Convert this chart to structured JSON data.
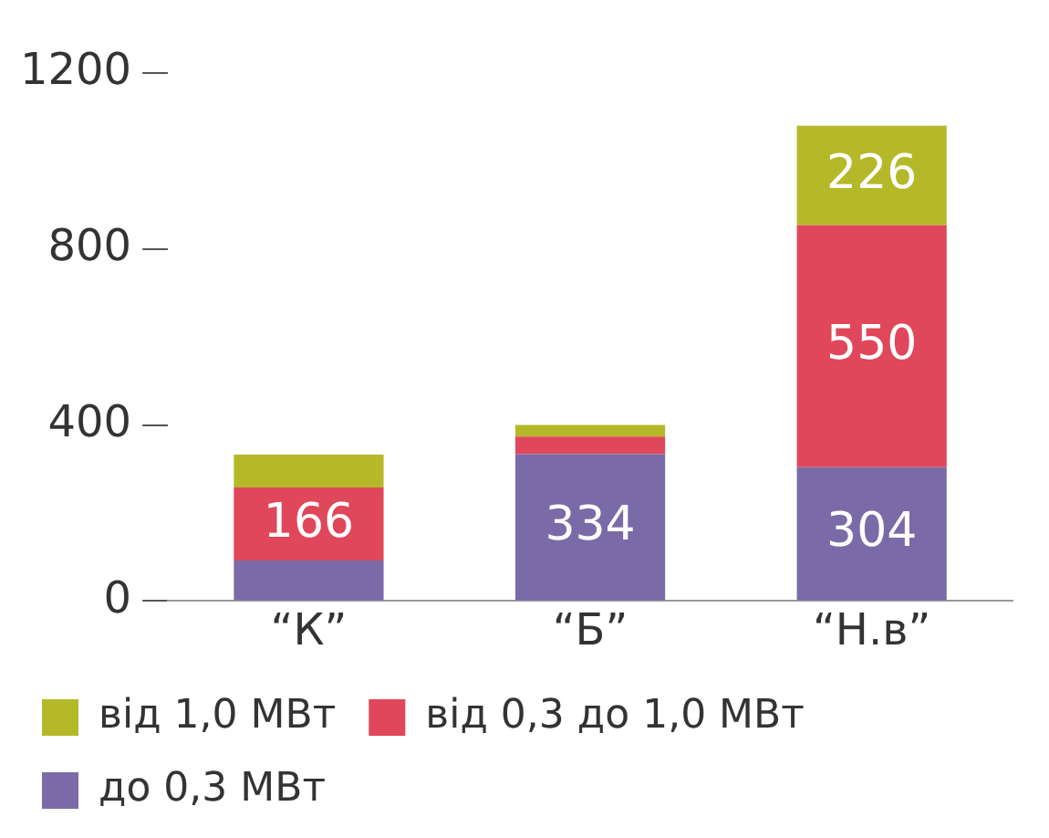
{
  "chart_data": {
    "type": "bar",
    "stacked": true,
    "categories": [
      "“К”",
      "“Б”",
      "“Н.в”"
    ],
    "series": [
      {
        "name": "до 0,3 МВт",
        "color": "#7a6aa8",
        "values": [
          92,
          334,
          304
        ],
        "value_labels": [
          null,
          "334",
          "304"
        ]
      },
      {
        "name": "від 0,3 до 1,0 МВт",
        "color": "#e0475a",
        "values": [
          166,
          40,
          550
        ],
        "value_labels": [
          "166",
          null,
          "550"
        ]
      },
      {
        "name": "від 1,0 МВт",
        "color": "#b5b829",
        "values": [
          75,
          26,
          226
        ],
        "value_labels": [
          null,
          null,
          "226"
        ]
      }
    ],
    "ylim": [
      0,
      1200
    ],
    "yticks": [
      0,
      400,
      800,
      1200
    ],
    "grid": false,
    "legend": "bottom"
  }
}
